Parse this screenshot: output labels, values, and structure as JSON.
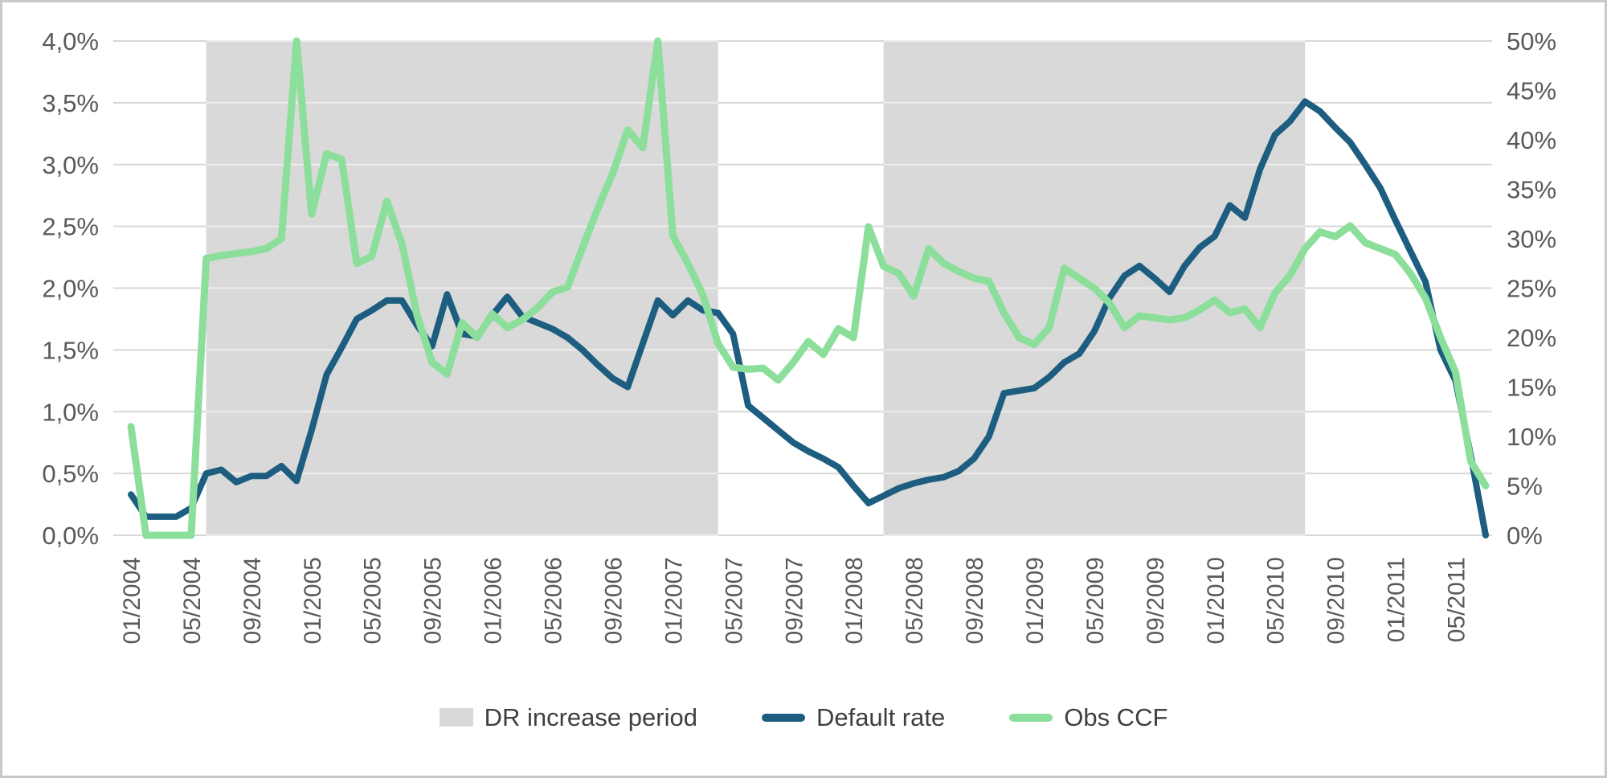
{
  "chart_data": {
    "type": "line",
    "title": "",
    "grid": true,
    "legend_position": "bottom",
    "x_tick_every": 4,
    "months": [
      "01/2004",
      "02/2004",
      "03/2004",
      "04/2004",
      "05/2004",
      "06/2004",
      "07/2004",
      "08/2004",
      "09/2004",
      "10/2004",
      "11/2004",
      "12/2004",
      "01/2005",
      "02/2005",
      "03/2005",
      "04/2005",
      "05/2005",
      "06/2005",
      "07/2005",
      "08/2005",
      "09/2005",
      "10/2005",
      "11/2005",
      "12/2005",
      "01/2006",
      "02/2006",
      "03/2006",
      "04/2006",
      "05/2006",
      "06/2006",
      "07/2006",
      "08/2006",
      "09/2006",
      "10/2006",
      "11/2006",
      "12/2006",
      "01/2007",
      "02/2007",
      "03/2007",
      "04/2007",
      "05/2007",
      "06/2007",
      "07/2007",
      "08/2007",
      "09/2007",
      "10/2007",
      "11/2007",
      "12/2007",
      "01/2008",
      "02/2008",
      "03/2008",
      "04/2008",
      "05/2008",
      "06/2008",
      "07/2008",
      "08/2008",
      "09/2008",
      "10/2008",
      "11/2008",
      "12/2008",
      "01/2009",
      "02/2009",
      "03/2009",
      "04/2009",
      "05/2009",
      "06/2009",
      "07/2009",
      "08/2009",
      "09/2009",
      "10/2009",
      "11/2009",
      "12/2009",
      "01/2010",
      "02/2010",
      "03/2010",
      "04/2010",
      "05/2010",
      "06/2010",
      "07/2010",
      "08/2010",
      "09/2010",
      "10/2010",
      "11/2010",
      "12/2010",
      "01/2011",
      "02/2011",
      "03/2011",
      "04/2011",
      "05/2011",
      "06/2011",
      "07/2011"
    ],
    "left_axis": {
      "title": "",
      "min": 0,
      "max": 4,
      "step": 0.5,
      "tick_labels": [
        "0,0%",
        "0,5%",
        "1,0%",
        "1,5%",
        "2,0%",
        "2,5%",
        "3,0%",
        "3,5%",
        "4,0%"
      ]
    },
    "right_axis": {
      "title": "",
      "min": 0,
      "max": 50,
      "step": 5,
      "tick_labels": [
        "0%",
        "5%",
        "10%",
        "15%",
        "20%",
        "25%",
        "30%",
        "35%",
        "40%",
        "45%",
        "50%"
      ]
    },
    "bands": [
      {
        "label": "DR increase period",
        "start": "06/2004",
        "end": "04/2007"
      },
      {
        "label": "DR increase period",
        "start": "03/2008",
        "end": "07/2010"
      }
    ],
    "series": [
      {
        "name": "Default rate",
        "axis": "left",
        "color": "#1c5d80",
        "values": [
          0.33,
          0.15,
          0.15,
          0.15,
          0.22,
          0.5,
          0.53,
          0.43,
          0.48,
          0.48,
          0.56,
          0.44,
          0.85,
          1.3,
          1.52,
          1.75,
          1.82,
          1.9,
          1.9,
          1.7,
          1.53,
          1.95,
          1.63,
          1.61,
          1.78,
          1.93,
          1.77,
          1.72,
          1.67,
          1.6,
          1.5,
          1.38,
          1.27,
          1.2,
          1.55,
          1.9,
          1.78,
          1.9,
          1.82,
          1.8,
          1.63,
          1.05,
          0.95,
          0.85,
          0.75,
          0.68,
          0.62,
          0.55,
          0.4,
          0.26,
          0.32,
          0.38,
          0.42,
          0.45,
          0.47,
          0.52,
          0.62,
          0.8,
          1.15,
          1.17,
          1.19,
          1.28,
          1.4,
          1.47,
          1.65,
          1.92,
          2.1,
          2.18,
          2.08,
          1.97,
          2.18,
          2.33,
          2.42,
          2.67,
          2.57,
          2.96,
          3.24,
          3.35,
          3.51,
          3.43,
          3.3,
          3.18,
          3.0,
          2.81,
          2.55,
          2.3,
          2.05,
          1.5,
          1.25,
          0.65,
          0.0
        ]
      },
      {
        "name": "Obs CCF",
        "axis": "right",
        "color": "#8cdf9b",
        "values": [
          11,
          0,
          0,
          0,
          0,
          28,
          28.3,
          28.5,
          28.7,
          29,
          30,
          50,
          32.5,
          38.6,
          38,
          27.5,
          28.2,
          33.8,
          29.5,
          22.3,
          17.5,
          16.3,
          21.5,
          20,
          22.4,
          21,
          21.8,
          23,
          24.6,
          25.1,
          29.1,
          33,
          36.6,
          41,
          39.2,
          50,
          30.3,
          27.5,
          24.3,
          19.4,
          17,
          16.8,
          16.9,
          15.7,
          17.5,
          19.6,
          18.3,
          20.9,
          20,
          31.2,
          27.2,
          26.5,
          24.2,
          29,
          27.5,
          26.7,
          26,
          25.7,
          22.5,
          20,
          19.3,
          21,
          27,
          26,
          25,
          23.5,
          21,
          22.2,
          22,
          21.8,
          22,
          22.8,
          23.8,
          22.5,
          22.9,
          21,
          24.5,
          26.3,
          29,
          30.7,
          30.2,
          31.3,
          29.6,
          29,
          28.4,
          26.5,
          24,
          20,
          16.5,
          7.5,
          5
        ]
      }
    ],
    "legend": [
      {
        "label": "DR increase period",
        "swatch": "band",
        "color": "#d9d9d9"
      },
      {
        "label": "Default rate",
        "swatch": "line",
        "color": "#1c5d80"
      },
      {
        "label": "Obs CCF",
        "swatch": "line",
        "color": "#8cdf9b"
      }
    ]
  },
  "colors": {
    "band": "#d9d9d9",
    "gridline": "#d7d7d7",
    "axis_text": "#595959",
    "legend_text": "#3f3f3f",
    "background": "#ffffff"
  }
}
